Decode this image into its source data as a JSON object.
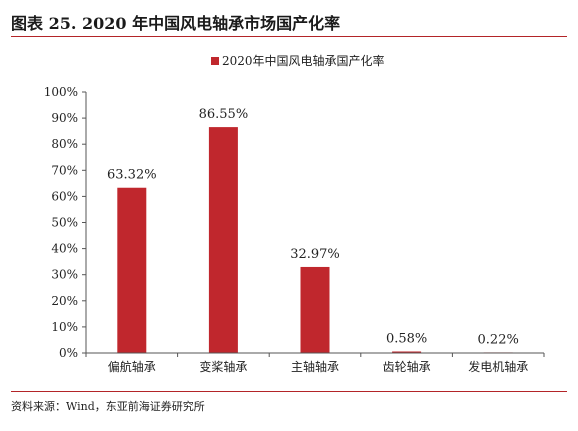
{
  "title": "图表 25. 2020 年中国风电轴承市场国产化率",
  "source": "资料来源：Wind，东亚前海证券研究所",
  "colors": {
    "bar": "#c0272d",
    "rule": "#b32428",
    "axis": "#555555"
  },
  "chart_data": {
    "type": "bar",
    "categories": [
      "偏航轴承",
      "变桨轴承",
      "主轴轴承",
      "齿轮轴承",
      "发电机轴承"
    ],
    "series": [
      {
        "name": "2020年中国风电轴承国产化率",
        "values": [
          63.32,
          86.55,
          32.97,
          0.58,
          0.22
        ]
      }
    ],
    "data_labels": [
      "63.32%",
      "86.55%",
      "32.97%",
      "0.58%",
      "0.22%"
    ],
    "yticks": [
      "0%",
      "10%",
      "20%",
      "30%",
      "40%",
      "50%",
      "60%",
      "70%",
      "80%",
      "90%",
      "100%"
    ],
    "ylim": [
      0,
      100
    ],
    "grid": false,
    "legend": "top-center"
  }
}
